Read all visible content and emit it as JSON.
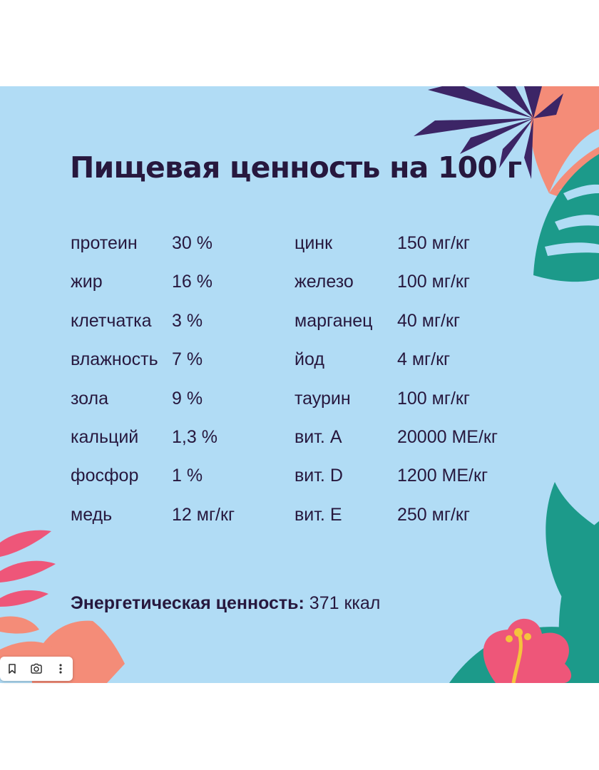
{
  "title": "Пищевая ценность на 100 г",
  "nutrients_left": [
    {
      "label": "протеин",
      "value": "30 %"
    },
    {
      "label": "жир",
      "value": "16 %"
    },
    {
      "label": "клетчатка",
      "value": "3 %"
    },
    {
      "label": "влажность",
      "value": "7 %"
    },
    {
      "label": "зола",
      "value": "9 %"
    },
    {
      "label": "кальций",
      "value": "1,3 %"
    },
    {
      "label": "фосфор",
      "value": "1 %"
    },
    {
      "label": "медь",
      "value": "12 мг/кг"
    }
  ],
  "nutrients_right": [
    {
      "label": "цинк",
      "value": "150 мг/кг"
    },
    {
      "label": "железо",
      "value": "100 мг/кг"
    },
    {
      "label": "марганец",
      "value": "40 мг/кг"
    },
    {
      "label": "йод",
      "value": "4 мг/кг"
    },
    {
      "label": "таурин",
      "value": "100 мг/кг"
    },
    {
      "label": "вит. A",
      "value": "20000 МЕ/кг"
    },
    {
      "label": "вит. D",
      "value": "1200 МЕ/кг"
    },
    {
      "label": "вит. E",
      "value": "250 мг/кг"
    }
  ],
  "energy": {
    "label": "Энергетическая ценность:",
    "value": " 371 ккал"
  },
  "toolbar": {
    "icons": [
      "bookmark-icon",
      "lens-icon",
      "more-vertical-icon"
    ]
  },
  "colors": {
    "background": "#b1dcf5",
    "text": "#27183e",
    "leaf_purple": "#3c2566",
    "leaf_salmon": "#f48c78",
    "leaf_teal": "#1c9a8a",
    "leaf_pink": "#ee5679",
    "flower_yellow": "#f5c43c"
  }
}
